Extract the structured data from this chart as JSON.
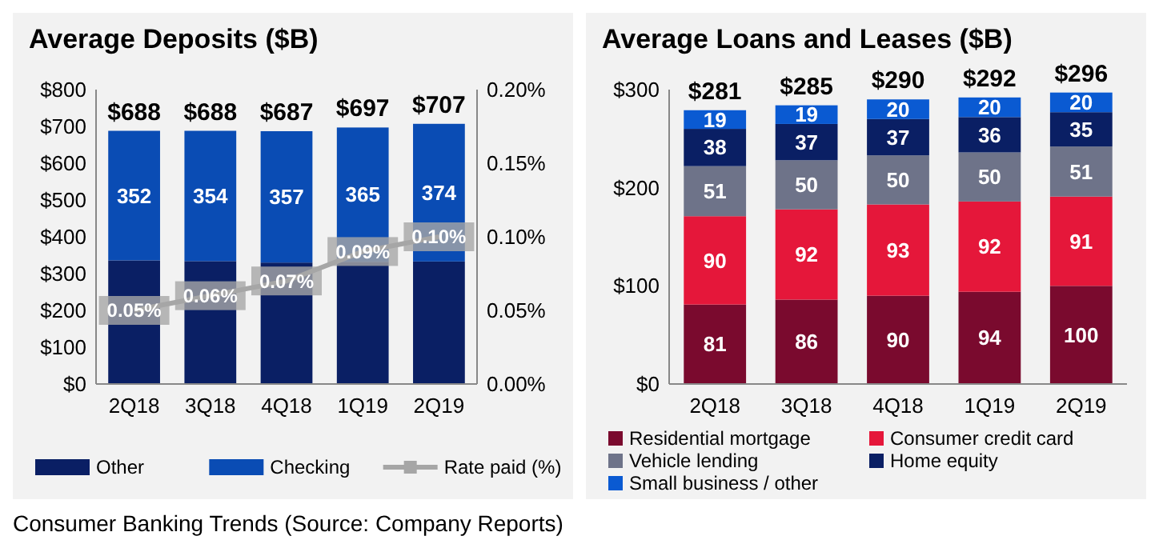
{
  "chart_data": [
    {
      "type": "bar",
      "title": "Average Deposits ($B)",
      "stacked": true,
      "categories": [
        "2Q18",
        "3Q18",
        "4Q18",
        "1Q19",
        "2Q19"
      ],
      "series": [
        {
          "name": "Other",
          "color": "#0a1f64",
          "values": [
            336,
            334,
            330,
            332,
            333
          ]
        },
        {
          "name": "Checking",
          "color": "#0a4cb4",
          "values": [
            352,
            354,
            357,
            365,
            374
          ],
          "value_labels": [
            "352",
            "354",
            "357",
            "365",
            "374"
          ]
        },
        {
          "name": "Rate paid (%)",
          "type": "line",
          "axis": "y2",
          "color": "#a6a6a6",
          "marker": "square",
          "values": [
            0.05,
            0.06,
            0.07,
            0.09,
            0.1
          ],
          "value_labels": [
            "0.05%",
            "0.06%",
            "0.07%",
            "0.09%",
            "0.10%"
          ]
        }
      ],
      "totals": [
        "$688",
        "$688",
        "$687",
        "$697",
        "$707"
      ],
      "ylim": [
        0,
        800
      ],
      "yticks": [
        {
          "value": 0,
          "label": "$0"
        },
        {
          "value": 100,
          "label": "$100"
        },
        {
          "value": 200,
          "label": "$200"
        },
        {
          "value": 300,
          "label": "$300"
        },
        {
          "value": 400,
          "label": "$400"
        },
        {
          "value": 500,
          "label": "$500"
        },
        {
          "value": 600,
          "label": "$600"
        },
        {
          "value": 700,
          "label": "$700"
        },
        {
          "value": 800,
          "label": "$800"
        }
      ],
      "y2lim": [
        0,
        0.2
      ],
      "y2ticks": [
        {
          "value": 0,
          "label": "0.00%"
        },
        {
          "value": 0.05,
          "label": "0.05%"
        },
        {
          "value": 0.1,
          "label": "0.10%"
        },
        {
          "value": 0.15,
          "label": "0.15%"
        },
        {
          "value": 0.2,
          "label": "0.20%"
        }
      ],
      "legend": "bottom",
      "grid": false,
      "annotations": [
        "Consumer Banking Trends (Source: Company Reports)"
      ]
    },
    {
      "type": "bar",
      "title": "Average Loans and Leases ($B)",
      "stacked": true,
      "categories": [
        "2Q18",
        "3Q18",
        "4Q18",
        "1Q19",
        "2Q19"
      ],
      "series": [
        {
          "name": "Residential mortgage",
          "color": "#7a0a2e",
          "values": [
            81,
            86,
            90,
            94,
            100
          ]
        },
        {
          "name": "Consumer credit card",
          "color": "#e5173a",
          "values": [
            90,
            92,
            93,
            92,
            91
          ]
        },
        {
          "name": "Vehicle lending",
          "color": "#6e7389",
          "values": [
            51,
            50,
            50,
            50,
            51
          ]
        },
        {
          "name": "Home equity",
          "color": "#0a1f64",
          "values": [
            38,
            37,
            37,
            36,
            35
          ]
        },
        {
          "name": "Small business / other",
          "color": "#0a5ad2",
          "values": [
            19,
            19,
            20,
            20,
            20
          ]
        }
      ],
      "data_labels": true,
      "totals": [
        "$281",
        "$285",
        "$290",
        "$292",
        "$296"
      ],
      "ylim": [
        0,
        300
      ],
      "yticks": [
        {
          "value": 0,
          "label": "$0"
        },
        {
          "value": 100,
          "label": "$100"
        },
        {
          "value": 200,
          "label": "$200"
        },
        {
          "value": 300,
          "label": "$300"
        }
      ],
      "legend": "bottom",
      "grid": false
    }
  ]
}
